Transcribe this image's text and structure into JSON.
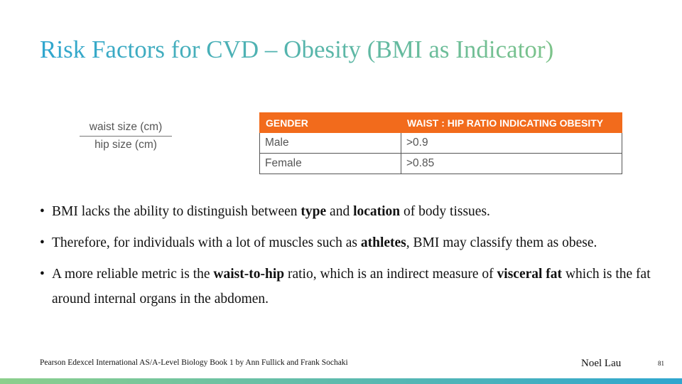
{
  "title": "Risk Factors for CVD – Obesity (BMI as Indicator)",
  "formula": {
    "numerator": "waist size (cm)",
    "denominator": "hip size (cm)"
  },
  "table": {
    "header": [
      "GENDER",
      "WAIST : HIP RATIO INDICATING OBESITY"
    ],
    "rows": [
      [
        "Male",
        ">0.9"
      ],
      [
        "Female",
        ">0.85"
      ]
    ]
  },
  "bullets": [
    [
      {
        "text": "BMI lacks the ability to distinguish between ",
        "bold": false
      },
      {
        "text": "type",
        "bold": true
      },
      {
        "text": " and ",
        "bold": false
      },
      {
        "text": "location",
        "bold": true
      },
      {
        "text": " of body tissues.",
        "bold": false
      }
    ],
    [
      {
        "text": "Therefore, for individuals with a lot of muscles such as ",
        "bold": false
      },
      {
        "text": "athletes",
        "bold": true
      },
      {
        "text": ", BMI may classify them as obese.",
        "bold": false
      }
    ],
    [
      {
        "text": "A more reliable metric is the ",
        "bold": false
      },
      {
        "text": "waist-to-hip",
        "bold": true
      },
      {
        "text": " ratio, which is an indirect measure of ",
        "bold": false
      },
      {
        "text": "visceral fat",
        "bold": true
      },
      {
        "text": " which is the fat around internal organs in the abdomen.",
        "bold": false
      }
    ]
  ],
  "footer": {
    "source": "Pearson Edexcel International AS/A-Level Biology Book 1 by Ann Fullick and Frank Sochaki",
    "author": "Noel Lau",
    "page_number": "81"
  }
}
